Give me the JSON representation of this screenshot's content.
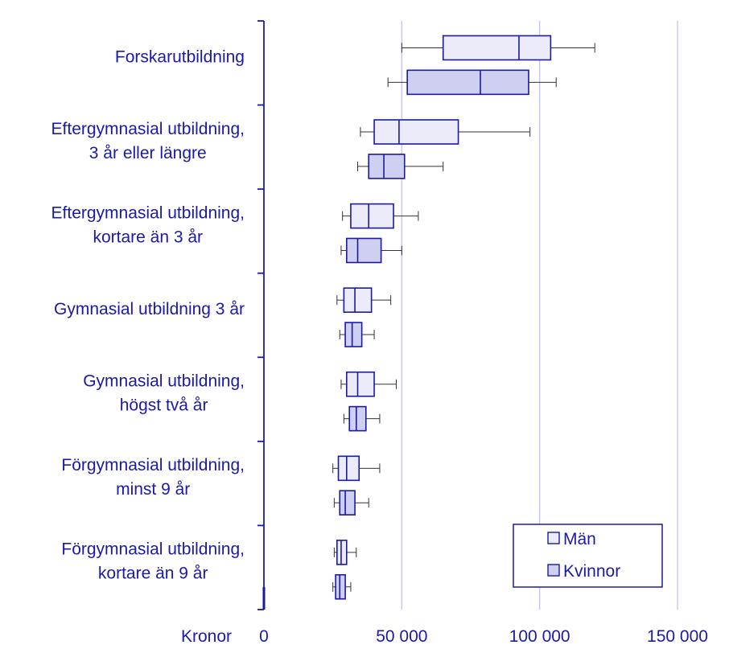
{
  "chart_data": {
    "type": "box",
    "orientation": "horizontal",
    "xlabel": "Kronor",
    "xlim": [
      0,
      150000
    ],
    "xticks": [
      0,
      50000,
      100000,
      150000
    ],
    "xtick_labels": [
      "0",
      "50 000",
      "100 000",
      "150 000"
    ],
    "grid": "vertical",
    "legend_position": "bottom-right",
    "colors": {
      "axis": "#1a1aa6",
      "text": "#1a1aa6",
      "grid": "#c8c8ee",
      "men_fill": "#ebebfa",
      "women_fill": "#cfcff2",
      "whisker": "#333333"
    },
    "series": [
      {
        "name": "Män",
        "fill_key": "men_fill"
      },
      {
        "name": "Kvinnor",
        "fill_key": "women_fill"
      }
    ],
    "categories": [
      {
        "label": [
          "Forskarutbildning"
        ],
        "men": {
          "min": 50000,
          "q1": 65000,
          "median": 92500,
          "q3": 104000,
          "max": 120000
        },
        "women": {
          "min": 45000,
          "q1": 52000,
          "median": 78500,
          "q3": 96000,
          "max": 106000
        }
      },
      {
        "label": [
          "Eftergymnasial utbildning,",
          "3 år eller längre"
        ],
        "men": {
          "min": 35000,
          "q1": 40000,
          "median": 49000,
          "q3": 70500,
          "max": 96500
        },
        "women": {
          "min": 34000,
          "q1": 38000,
          "median": 43500,
          "q3": 51000,
          "max": 65000
        }
      },
      {
        "label": [
          "Eftergymnasial utbildning,",
          "kortare än 3 år"
        ],
        "men": {
          "min": 28500,
          "q1": 31500,
          "median": 38000,
          "q3": 47000,
          "max": 56000
        },
        "women": {
          "min": 28000,
          "q1": 30000,
          "median": 34000,
          "q3": 42500,
          "max": 50000
        }
      },
      {
        "label": [
          "Gymnasial utbildning 3 år"
        ],
        "men": {
          "min": 26500,
          "q1": 29000,
          "median": 33000,
          "q3": 39000,
          "max": 46000
        },
        "women": {
          "min": 27500,
          "q1": 29500,
          "median": 32000,
          "q3": 35500,
          "max": 40000
        }
      },
      {
        "label": [
          "Gymnasial utbildning,",
          "högst två år"
        ],
        "men": {
          "min": 28000,
          "q1": 30000,
          "median": 34000,
          "q3": 40000,
          "max": 48000
        },
        "women": {
          "min": 29000,
          "q1": 31000,
          "median": 33500,
          "q3": 37000,
          "max": 42000
        }
      },
      {
        "label": [
          "Förgymnasial utbildning,",
          "minst 9 år"
        ],
        "men": {
          "min": 25000,
          "q1": 27000,
          "median": 30000,
          "q3": 34500,
          "max": 42000
        },
        "women": {
          "min": 25500,
          "q1": 27500,
          "median": 29500,
          "q3": 33000,
          "max": 38000
        }
      },
      {
        "label": [
          "Förgymnasial utbildning,",
          "kortare än 9 år"
        ],
        "men": {
          "min": 25500,
          "q1": 26500,
          "median": 28000,
          "q3": 30000,
          "max": 33500
        },
        "women": {
          "min": 25000,
          "q1": 26000,
          "median": 27500,
          "q3": 29500,
          "max": 31500
        }
      }
    ]
  }
}
